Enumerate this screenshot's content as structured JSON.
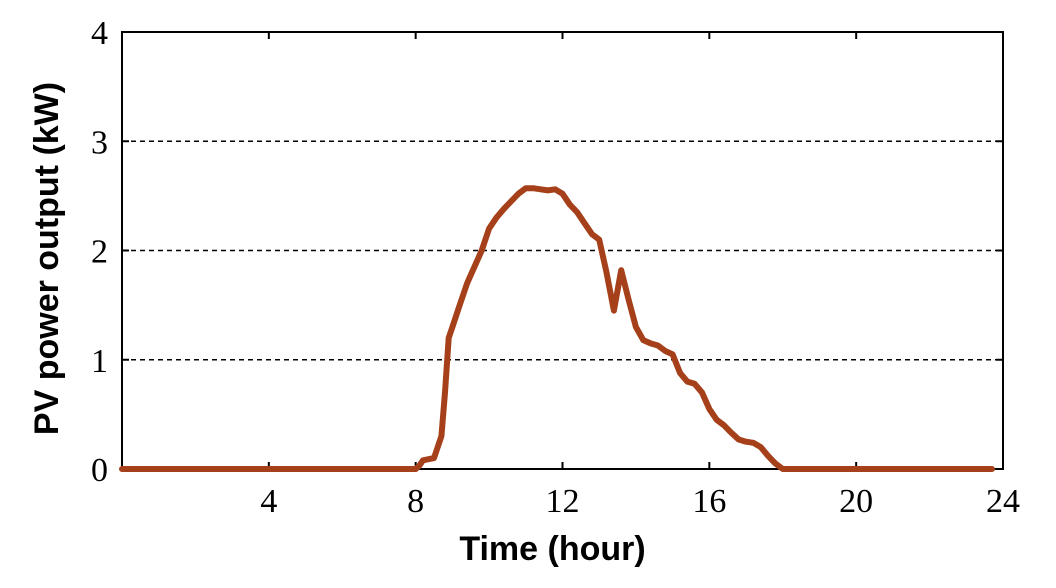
{
  "chart_data": {
    "type": "line",
    "title": "",
    "xlabel": "Time (hour)",
    "ylabel": "PV power output (kW)",
    "xlim": [
      0,
      24
    ],
    "ylim": [
      0,
      4
    ],
    "xticks": [
      4,
      8,
      12,
      16,
      20,
      24
    ],
    "xtick_labels": [
      "4",
      "8",
      "12",
      "16",
      "20",
      "24"
    ],
    "yticks": [
      0,
      1,
      2,
      3,
      4
    ],
    "ytick_labels": [
      "0",
      "1",
      "2",
      "3",
      "4"
    ],
    "grid": "horizontal dashed at y = 1, 2, 3",
    "legend": "none",
    "series": [
      {
        "color": "#a5401a",
        "x": [
          0,
          8.0,
          8.1,
          8.2,
          8.5,
          8.7,
          8.8,
          8.9,
          9.0,
          9.2,
          9.4,
          9.6,
          9.8,
          10.0,
          10.2,
          10.4,
          10.6,
          10.8,
          11.0,
          11.2,
          11.4,
          11.6,
          11.8,
          12.0,
          12.2,
          12.4,
          12.6,
          12.8,
          13.0,
          13.2,
          13.4,
          13.6,
          13.8,
          14.0,
          14.2,
          14.4,
          14.6,
          14.8,
          15.0,
          15.2,
          15.4,
          15.6,
          15.8,
          16.0,
          16.2,
          16.4,
          16.6,
          16.8,
          17.0,
          17.2,
          17.4,
          17.6,
          17.8,
          18.0,
          18.1,
          20,
          23.7
        ],
        "y": [
          0,
          0,
          0.03,
          0.08,
          0.1,
          0.3,
          0.7,
          1.2,
          1.3,
          1.5,
          1.7,
          1.85,
          2.0,
          2.2,
          2.3,
          2.38,
          2.45,
          2.52,
          2.57,
          2.57,
          2.56,
          2.55,
          2.56,
          2.52,
          2.42,
          2.35,
          2.25,
          2.15,
          2.1,
          1.8,
          1.45,
          1.82,
          1.55,
          1.3,
          1.18,
          1.15,
          1.13,
          1.08,
          1.05,
          0.88,
          0.8,
          0.78,
          0.7,
          0.55,
          0.45,
          0.4,
          0.33,
          0.27,
          0.25,
          0.24,
          0.2,
          0.12,
          0.05,
          0.0,
          0,
          0,
          0
        ]
      }
    ]
  }
}
